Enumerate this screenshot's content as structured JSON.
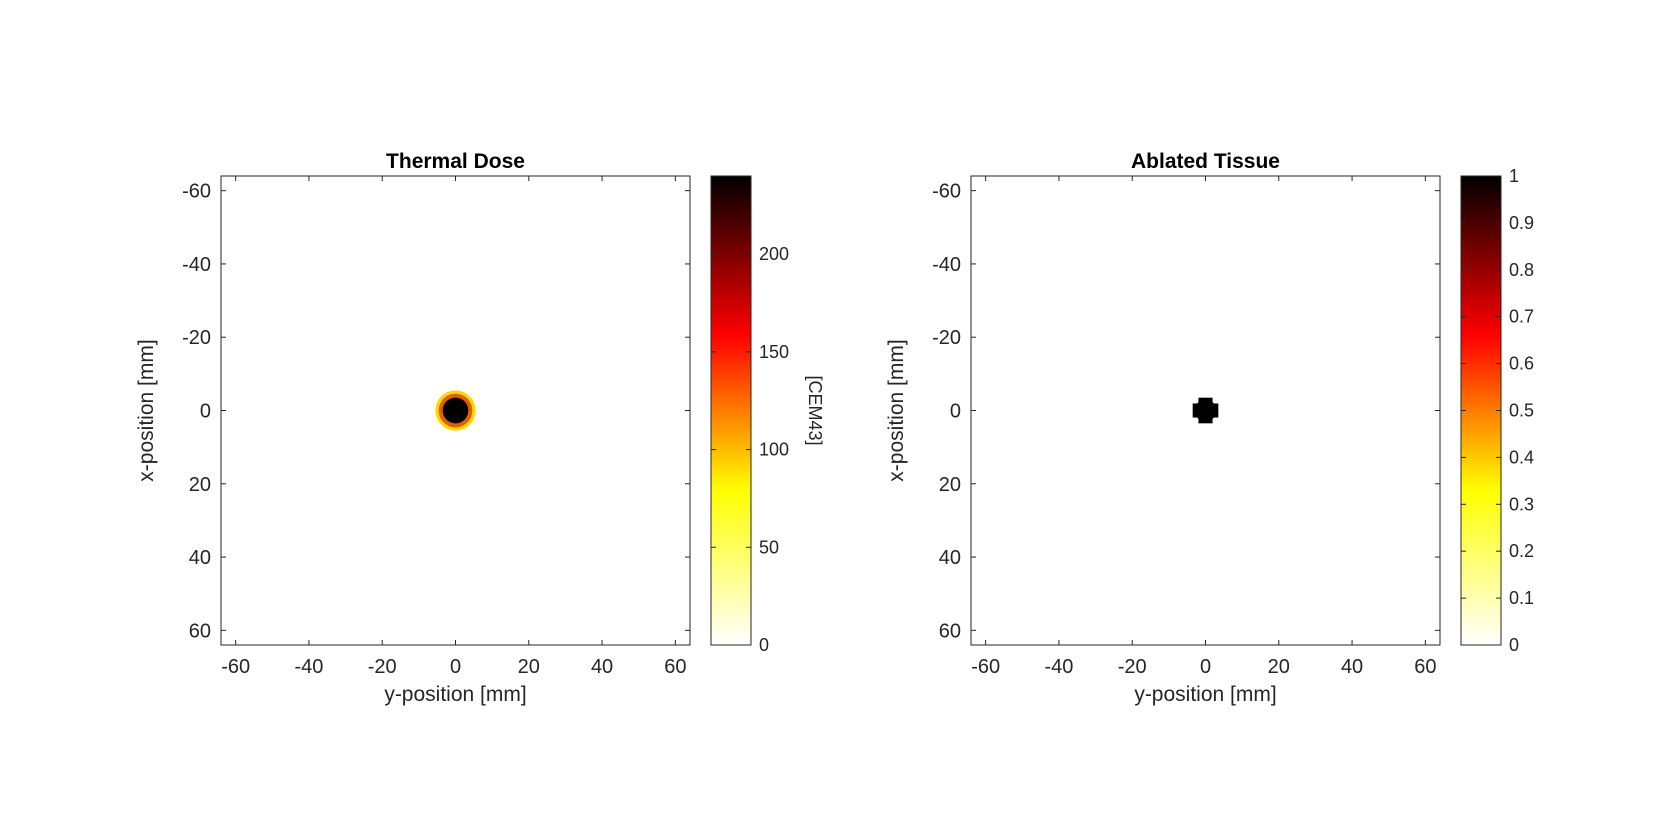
{
  "chart_data": [
    {
      "type": "heatmap",
      "title": "Thermal Dose",
      "xlabel": "y-position [mm]",
      "ylabel": "x-position [mm]",
      "xlim": [
        -64,
        64
      ],
      "ylim": [
        -64,
        64
      ],
      "y_reversed": true,
      "xticks": [
        -60,
        -40,
        -20,
        0,
        20,
        40,
        60
      ],
      "yticks": [
        -60,
        -40,
        -20,
        0,
        20,
        40,
        60
      ],
      "colormap": "hot (reversed)",
      "grid": false,
      "colorbar": {
        "label": "[CEM43]",
        "range": [
          0,
          240
        ],
        "ticks": [
          0,
          50,
          100,
          150,
          200
        ]
      },
      "features": [
        {
          "shape": "disk",
          "center_y_mm": 0,
          "center_x_mm": 0,
          "core_radius_mm": 3.5,
          "core_value": 240,
          "rim_radius_mm": 5.5,
          "rim_value": 80
        }
      ]
    },
    {
      "type": "heatmap",
      "title": "Ablated Tissue",
      "xlabel": "y-position [mm]",
      "ylabel": "x-position [mm]",
      "xlim": [
        -64,
        64
      ],
      "ylim": [
        -64,
        64
      ],
      "y_reversed": true,
      "xticks": [
        -60,
        -40,
        -20,
        0,
        20,
        40,
        60
      ],
      "yticks": [
        -60,
        -40,
        -20,
        0,
        20,
        40,
        60
      ],
      "colormap": "hot (reversed)",
      "grid": false,
      "colorbar": {
        "label": "",
        "range": [
          0,
          1
        ],
        "ticks": [
          0,
          0.1,
          0.2,
          0.3,
          0.4,
          0.5,
          0.6,
          0.7,
          0.8,
          0.9,
          1
        ]
      },
      "features": [
        {
          "shape": "disk",
          "center_y_mm": 0,
          "center_x_mm": 0,
          "core_radius_mm": 3.5,
          "core_value": 1
        }
      ]
    }
  ]
}
